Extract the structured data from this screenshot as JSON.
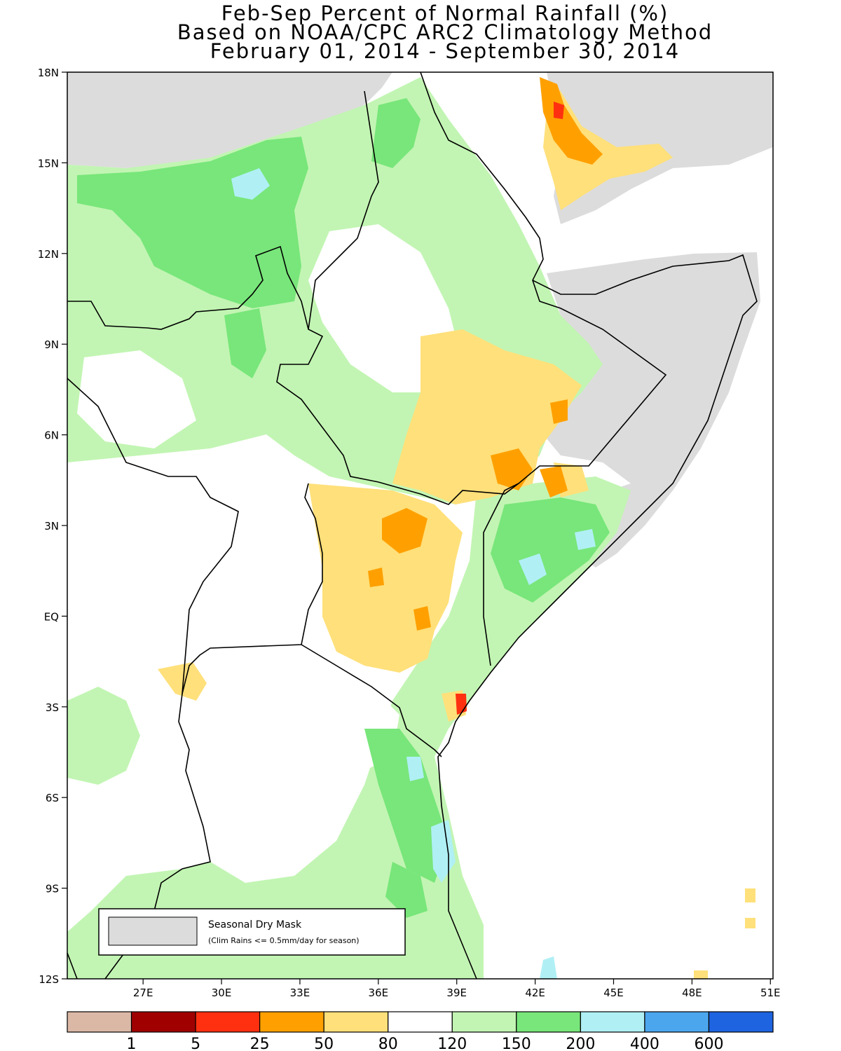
{
  "title": {
    "line1": "Feb-Sep Percent of Normal Rainfall (%)",
    "line2": "Based on NOAA/CPC ARC2 Climatology Method",
    "line3": "February 01, 2014 - September 30, 2014"
  },
  "axes": {
    "lat_labels": [
      "18N",
      "15N",
      "12N",
      "9N",
      "6N",
      "3N",
      "EQ",
      "3S",
      "6S",
      "9S",
      "12S"
    ],
    "lon_labels": [
      "27E",
      "30E",
      "33E",
      "36E",
      "39E",
      "42E",
      "45E",
      "48E",
      "51E"
    ],
    "lat_range": [
      -12,
      18
    ],
    "lon_range": [
      24.1,
      51.1
    ]
  },
  "inset_legend": {
    "title": "Seasonal Dry Mask",
    "note": "(Clim Rains <= 0.5mm/day for season)",
    "mask_color": "#dcdcdc"
  },
  "colorbar": {
    "colors": [
      "#dbb8a6",
      "#a00000",
      "#ff3010",
      "#ffa000",
      "#ffe07a",
      "#ffffff",
      "#c2f5b3",
      "#78e67a",
      "#b0f0f5",
      "#4ca6ee",
      "#1e64e0"
    ],
    "labels": [
      "1",
      "5",
      "25",
      "50",
      "80",
      "120",
      "150",
      "200",
      "400",
      "600"
    ]
  }
}
